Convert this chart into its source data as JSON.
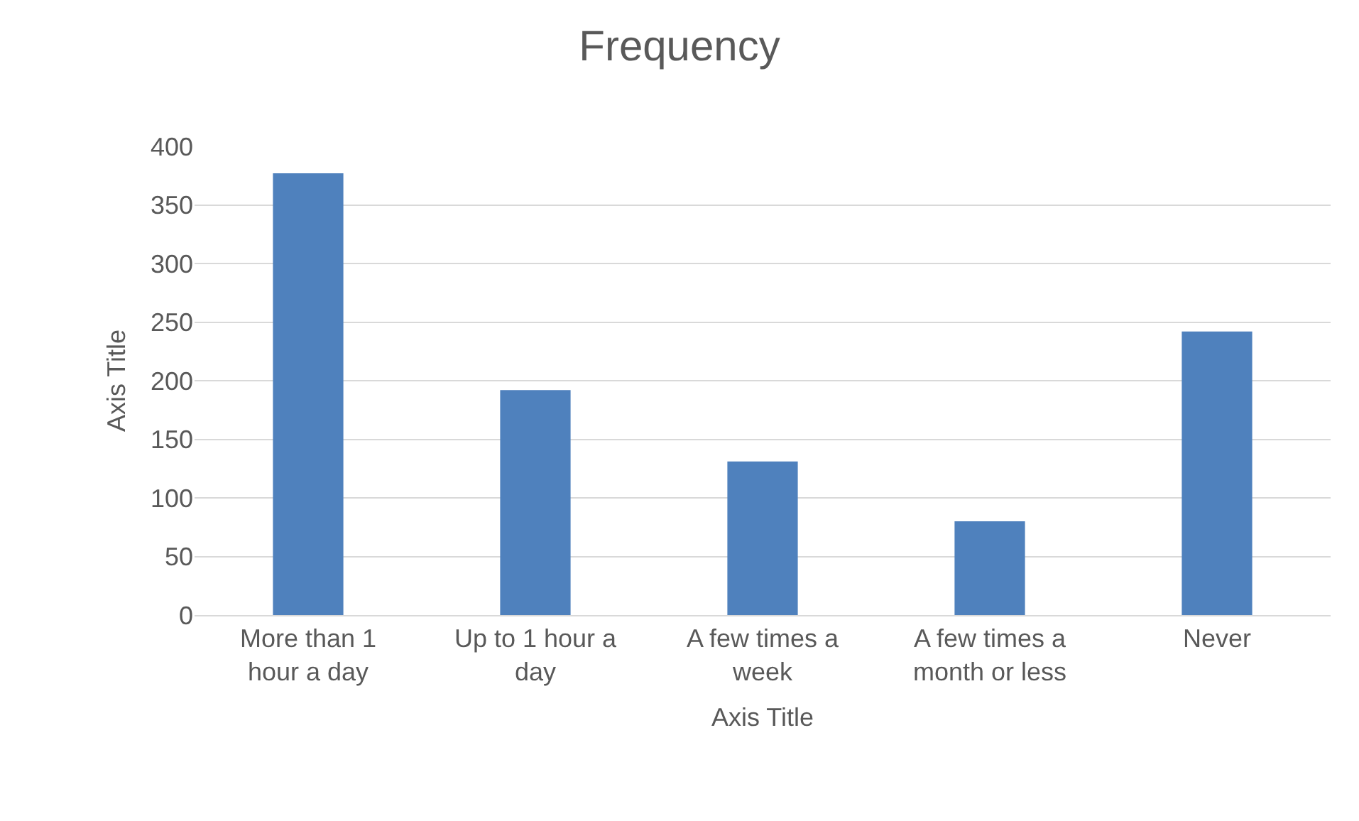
{
  "chart_data": {
    "type": "bar",
    "title": "Frequency",
    "xlabel": "Axis Title",
    "ylabel": "Axis Title",
    "categories": [
      "More than 1 hour a day",
      "Up to 1 hour a day",
      "A few times a week",
      "A few times a month or less",
      "Never"
    ],
    "values": [
      377,
      192,
      131,
      80,
      242
    ],
    "color": "#4f81bd",
    "ylim": [
      0,
      400
    ],
    "yticks": [
      0,
      50,
      100,
      150,
      200,
      250,
      300,
      350,
      400
    ],
    "grid": "y"
  }
}
